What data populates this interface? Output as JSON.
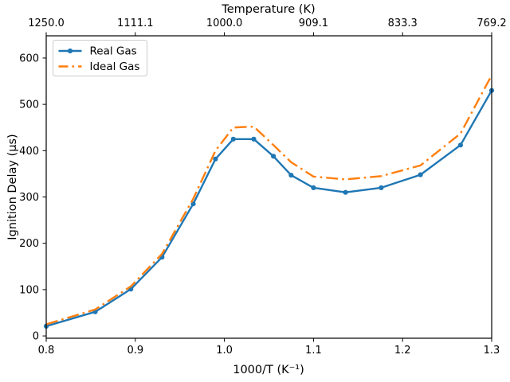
{
  "chart_data": {
    "type": "line",
    "title": "",
    "xlabel": "1000/T (K⁻¹)",
    "top_xlabel": "Temperature (K)",
    "ylabel": "Ignition Delay (μs)",
    "xlim": [
      0.8,
      1.3
    ],
    "ylim": [
      -5,
      648
    ],
    "grid": false,
    "legend_position": "upper-left",
    "x": [
      0.8,
      0.855,
      0.895,
      0.93,
      0.965,
      0.99,
      1.01,
      1.033,
      1.055,
      1.075,
      1.1,
      1.136,
      1.176,
      1.22,
      1.265,
      1.3
    ],
    "series": [
      {
        "name": "Real Gas",
        "color": "#1f77b4",
        "style": "solid",
        "marker": "circle",
        "values": [
          21,
          52,
          101,
          170,
          285,
          382,
          425,
          425,
          388,
          347,
          320,
          310,
          320,
          348,
          412,
          530
        ]
      },
      {
        "name": "Ideal Gas",
        "color": "#ff7f0e",
        "style": "dashdot",
        "marker": "none",
        "values": [
          25,
          57,
          107,
          177,
          296,
          400,
          450,
          452,
          412,
          375,
          344,
          338,
          345,
          368,
          437,
          563
        ]
      }
    ],
    "x_ticks": [
      {
        "v": 0.8,
        "label": "0.8"
      },
      {
        "v": 0.9,
        "label": "0.9"
      },
      {
        "v": 1.0,
        "label": "1.0"
      },
      {
        "v": 1.1,
        "label": "1.1"
      },
      {
        "v": 1.2,
        "label": "1.2"
      },
      {
        "v": 1.3,
        "label": "1.3"
      }
    ],
    "top_ticks": [
      {
        "v": 0.8,
        "label": "1250.0"
      },
      {
        "v": 0.9,
        "label": "1111.1"
      },
      {
        "v": 1.0,
        "label": "1000.0"
      },
      {
        "v": 1.1,
        "label": "909.1"
      },
      {
        "v": 1.2,
        "label": "833.3"
      },
      {
        "v": 1.3,
        "label": "769.2"
      }
    ],
    "y_ticks": [
      {
        "v": 0,
        "label": "0"
      },
      {
        "v": 100,
        "label": "100"
      },
      {
        "v": 200,
        "label": "200"
      },
      {
        "v": 300,
        "label": "300"
      },
      {
        "v": 400,
        "label": "400"
      },
      {
        "v": 500,
        "label": "500"
      },
      {
        "v": 600,
        "label": "600"
      }
    ],
    "legend": [
      {
        "label": "Real Gas"
      },
      {
        "label": "Ideal Gas"
      }
    ]
  }
}
